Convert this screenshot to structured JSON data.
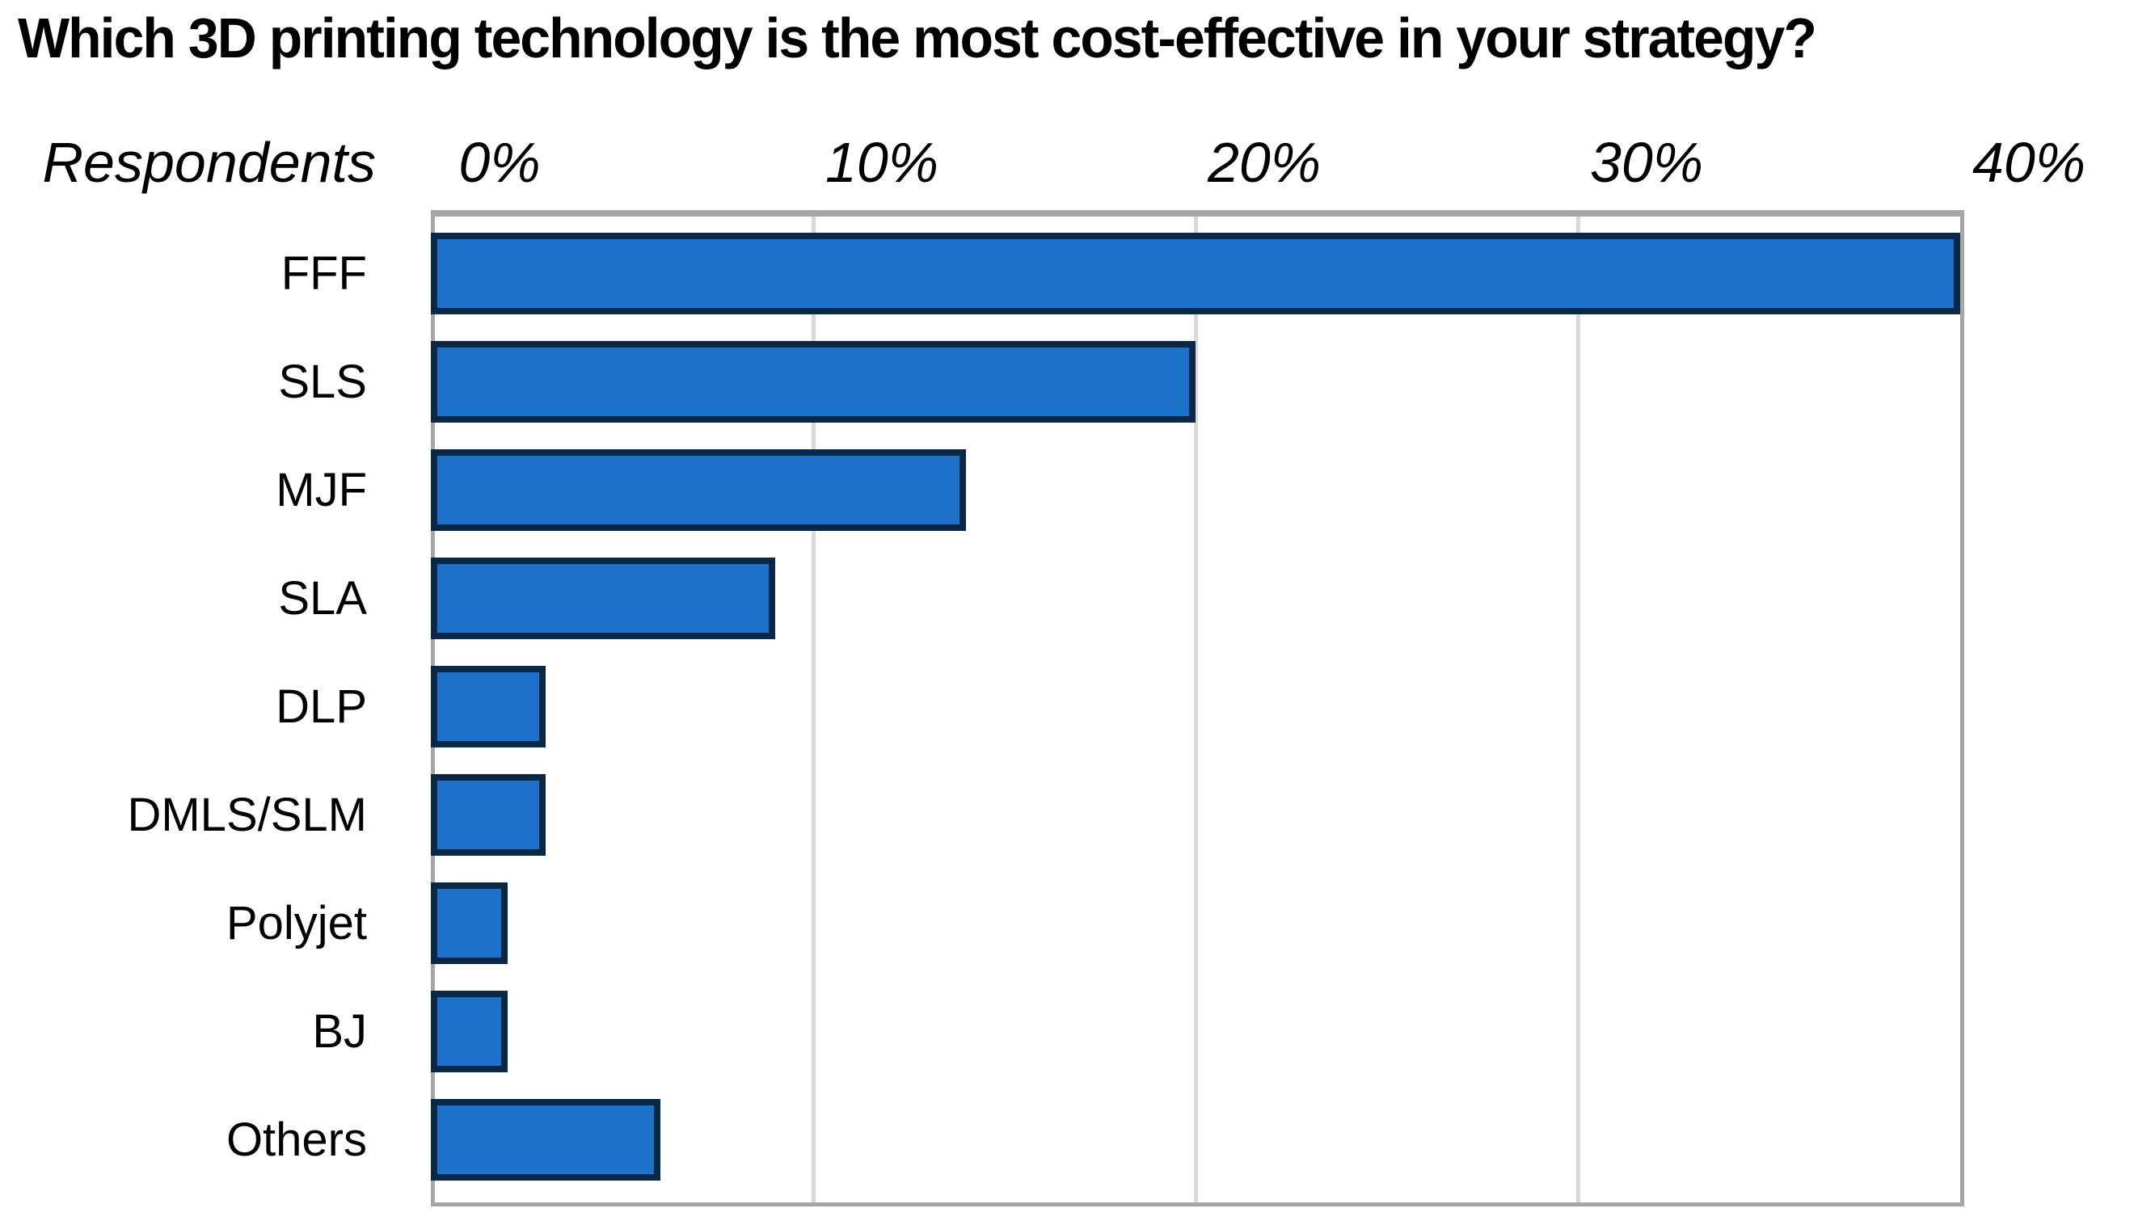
{
  "chart_data": {
    "type": "bar",
    "orientation": "horizontal",
    "title": "Which 3D printing technology is the most cost-effective in your strategy?",
    "ylabel": "Respondents",
    "xlabel": "",
    "categories": [
      "FFF",
      "SLS",
      "MJF",
      "SLA",
      "DLP",
      "DMLS/SLM",
      "Polyjet",
      "BJ",
      "Others"
    ],
    "values": [
      40,
      20,
      14,
      9,
      3,
      3,
      2,
      2,
      6
    ],
    "unit": "%",
    "xlim": [
      0,
      40
    ],
    "x_ticks": [
      {
        "label": "0%",
        "value": 0
      },
      {
        "label": "10%",
        "value": 10
      },
      {
        "label": "20%",
        "value": 20
      },
      {
        "label": "30%",
        "value": 30
      },
      {
        "label": "40%",
        "value": 40
      }
    ],
    "grid": true,
    "legend": false,
    "colors": {
      "bar_fill": "#1B72C8",
      "bar_border": "#0A2746",
      "plot_border": "#A6A6A6",
      "gridline": "#D9D9D9",
      "text": "#000000",
      "background": "#FFFFFF"
    }
  }
}
